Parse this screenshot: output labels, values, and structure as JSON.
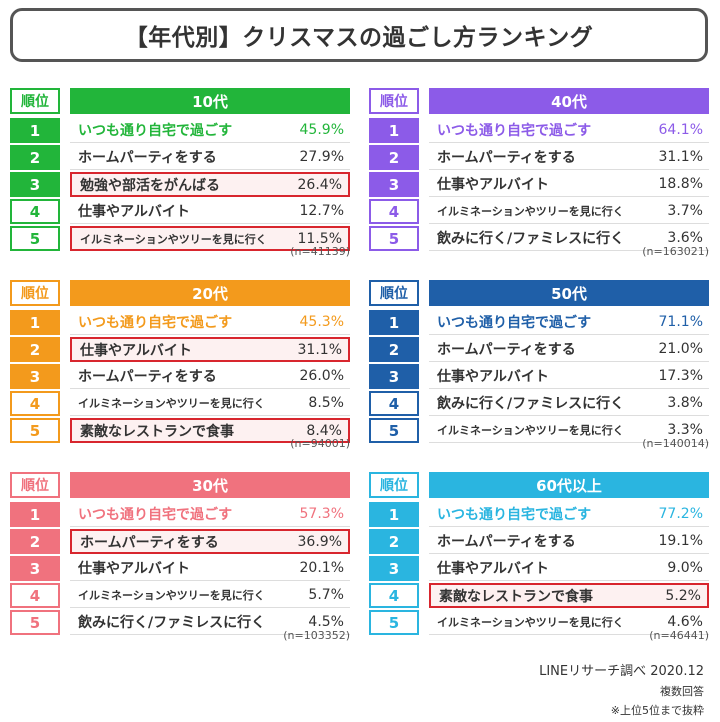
{
  "title": "【年代別】クリスマスの過ごし方ランキング",
  "rank_header": "順位",
  "chart_data": [
    {
      "type": "table",
      "age": "10代",
      "color": "#22b53a",
      "n": "(n=41139)",
      "rows": [
        {
          "rank": "1",
          "label": "いつも通り自宅で過ごす",
          "value": "45.9%",
          "highlight": false
        },
        {
          "rank": "2",
          "label": "ホームパーティをする",
          "value": "27.9%",
          "highlight": false
        },
        {
          "rank": "3",
          "label": "勉強や部活をがんばる",
          "value": "26.4%",
          "highlight": true
        },
        {
          "rank": "4",
          "label": "仕事やアルバイト",
          "value": "12.7%",
          "highlight": false
        },
        {
          "rank": "5",
          "label": "イルミネーションやツリーを見に行く",
          "value": "11.5%",
          "highlight": true
        }
      ]
    },
    {
      "type": "table",
      "age": "40代",
      "color": "#8c5be8",
      "n": "(n=163021)",
      "rows": [
        {
          "rank": "1",
          "label": "いつも通り自宅で過ごす",
          "value": "64.1%",
          "highlight": false
        },
        {
          "rank": "2",
          "label": "ホームパーティをする",
          "value": "31.1%",
          "highlight": false
        },
        {
          "rank": "3",
          "label": "仕事やアルバイト",
          "value": "18.8%",
          "highlight": false
        },
        {
          "rank": "4",
          "label": "イルミネーションやツリーを見に行く",
          "value": "3.7%",
          "highlight": false
        },
        {
          "rank": "5",
          "label": "飲みに行く/ファミレスに行く",
          "value": "3.6%",
          "highlight": false
        }
      ]
    },
    {
      "type": "table",
      "age": "20代",
      "color": "#f39a1c",
      "n": "(n=94001)",
      "rows": [
        {
          "rank": "1",
          "label": "いつも通り自宅で過ごす",
          "value": "45.3%",
          "highlight": false
        },
        {
          "rank": "2",
          "label": "仕事やアルバイト",
          "value": "31.1%",
          "highlight": true
        },
        {
          "rank": "3",
          "label": "ホームパーティをする",
          "value": "26.0%",
          "highlight": false
        },
        {
          "rank": "4",
          "label": "イルミネーションやツリーを見に行く",
          "value": "8.5%",
          "highlight": false
        },
        {
          "rank": "5",
          "label": "素敵なレストランで食事",
          "value": "8.4%",
          "highlight": true
        }
      ]
    },
    {
      "type": "table",
      "age": "50代",
      "color": "#1f5fa8",
      "n": "(n=140014)",
      "rows": [
        {
          "rank": "1",
          "label": "いつも通り自宅で過ごす",
          "value": "71.1%",
          "highlight": false
        },
        {
          "rank": "2",
          "label": "ホームパーティをする",
          "value": "21.0%",
          "highlight": false
        },
        {
          "rank": "3",
          "label": "仕事やアルバイト",
          "value": "17.3%",
          "highlight": false
        },
        {
          "rank": "4",
          "label": "飲みに行く/ファミレスに行く",
          "value": "3.8%",
          "highlight": false
        },
        {
          "rank": "5",
          "label": "イルミネーションやツリーを見に行く",
          "value": "3.3%",
          "highlight": false
        }
      ]
    },
    {
      "type": "table",
      "age": "30代",
      "color": "#f0727e",
      "n": "(n=103352)",
      "rows": [
        {
          "rank": "1",
          "label": "いつも通り自宅で過ごす",
          "value": "57.3%",
          "highlight": false
        },
        {
          "rank": "2",
          "label": "ホームパーティをする",
          "value": "36.9%",
          "highlight": true
        },
        {
          "rank": "3",
          "label": "仕事やアルバイト",
          "value": "20.1%",
          "highlight": false
        },
        {
          "rank": "4",
          "label": "イルミネーションやツリーを見に行く",
          "value": "5.7%",
          "highlight": false
        },
        {
          "rank": "5",
          "label": "飲みに行く/ファミレスに行く",
          "value": "4.5%",
          "highlight": false
        }
      ]
    },
    {
      "type": "table",
      "age": "60代以上",
      "color": "#2ab5e0",
      "n": "(n=46441)",
      "rows": [
        {
          "rank": "1",
          "label": "いつも通り自宅で過ごす",
          "value": "77.2%",
          "highlight": false
        },
        {
          "rank": "2",
          "label": "ホームパーティをする",
          "value": "19.1%",
          "highlight": false
        },
        {
          "rank": "3",
          "label": "仕事やアルバイト",
          "value": "9.0%",
          "highlight": false
        },
        {
          "rank": "4",
          "label": "素敵なレストランで食事",
          "value": "5.2%",
          "highlight": true
        },
        {
          "rank": "5",
          "label": "イルミネーションやツリーを見に行く",
          "value": "4.6%",
          "highlight": false
        }
      ]
    }
  ],
  "footer": {
    "source": "LINEリサーチ調べ 2020.12",
    "note1": "複数回答",
    "note2": "※上位5位まで抜粋"
  }
}
